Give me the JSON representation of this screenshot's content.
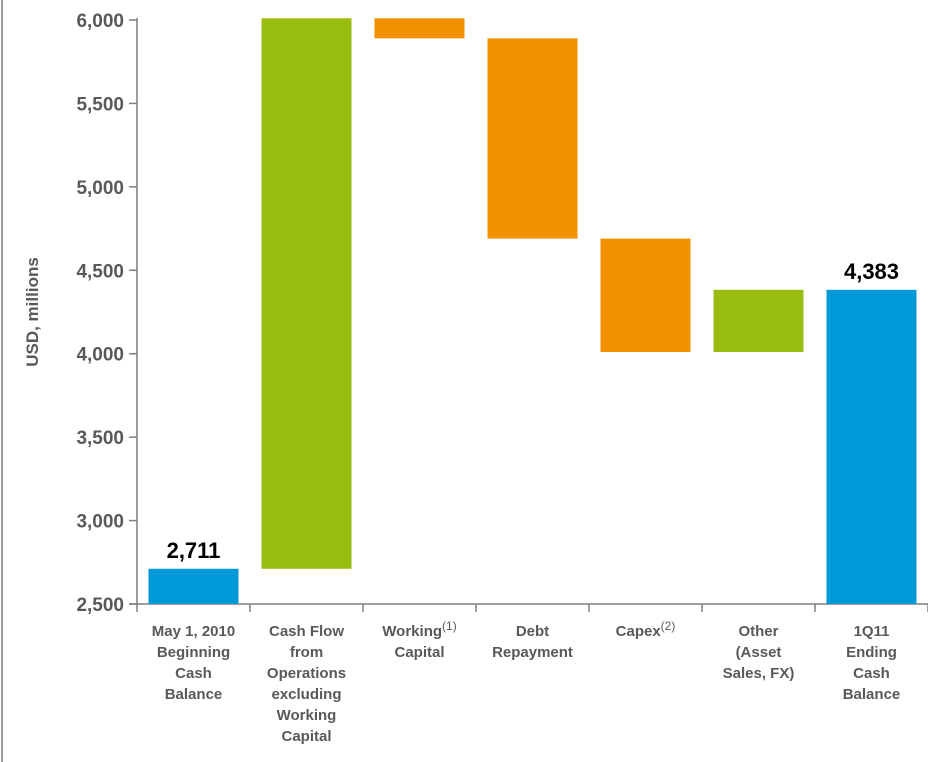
{
  "chart_data": {
    "type": "bar",
    "subtype": "waterfall",
    "ylabel": "USD, millions",
    "ylim": [
      2500,
      6000
    ],
    "yticks": [
      "2,500",
      "3,000",
      "3,500",
      "4,000",
      "4,500",
      "5,000",
      "5,500",
      "6,000"
    ],
    "ytick_values": [
      2500,
      3000,
      3500,
      4000,
      4500,
      5000,
      5500,
      6000
    ],
    "categories": [
      {
        "lines": [
          "May 1, 2010",
          "Beginning",
          "Cash",
          "Balance"
        ]
      },
      {
        "lines": [
          "Cash Flow",
          "from",
          "Operations",
          "excluding",
          "Working",
          "Capital"
        ]
      },
      {
        "lines": [
          "Working",
          "Capital"
        ],
        "sup": "(1)"
      },
      {
        "lines": [
          "Debt",
          "Repayment"
        ]
      },
      {
        "lines": [
          "Capex"
        ],
        "sup": "(2)"
      },
      {
        "lines": [
          "Other",
          "(Asset",
          "Sales, FX)"
        ]
      },
      {
        "lines": [
          "1Q11",
          "Ending",
          "Cash",
          "Balance"
        ]
      }
    ],
    "bars": [
      {
        "kind": "total",
        "start": 2500,
        "end": 2711,
        "label": "2,711"
      },
      {
        "kind": "increase",
        "start": 2711,
        "end": 6010
      },
      {
        "kind": "decrease",
        "start": 6010,
        "end": 5890
      },
      {
        "kind": "decrease",
        "start": 5890,
        "end": 4690
      },
      {
        "kind": "decrease",
        "start": 4690,
        "end": 4010
      },
      {
        "kind": "increase",
        "start": 4010,
        "end": 4383
      },
      {
        "kind": "total",
        "start": 2500,
        "end": 4383,
        "label": "4,383"
      }
    ],
    "colors": {
      "total": "#0099d8",
      "increase": "#98bd0f",
      "decrease": "#f29100",
      "axis": "#7f7f7f",
      "text": "#595959"
    },
    "grid": false,
    "legend": "none"
  }
}
